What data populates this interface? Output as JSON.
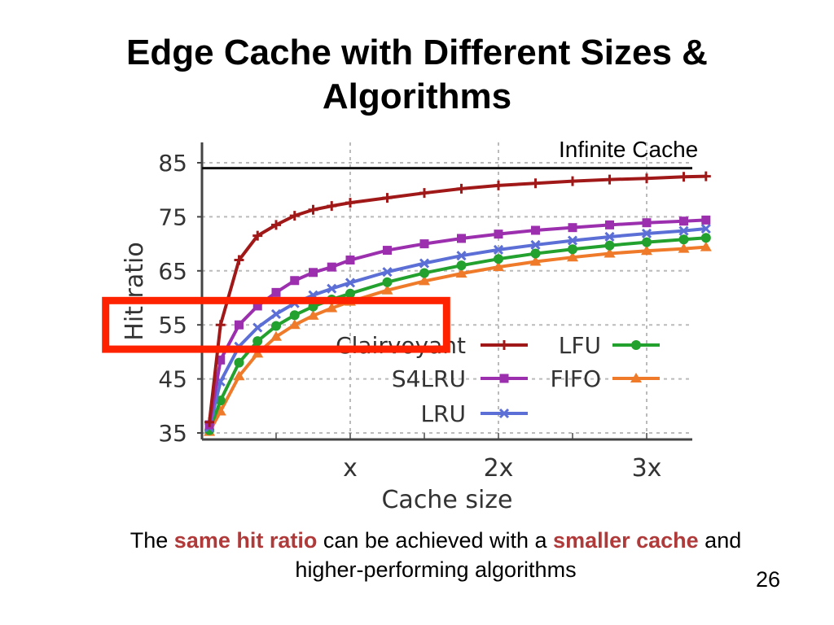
{
  "slide": {
    "title_line1": "Edge Cache with Different Sizes &",
    "title_line2": "Algorithms",
    "infinite_cache_label": "Infinite Cache",
    "caption": {
      "part1": "The ",
      "highlight1": "same hit ratio",
      "part2": " can be achieved with a ",
      "highlight2": "smaller cache",
      "part3": " and",
      "line2": "higher-performing algorithms"
    },
    "slide_number": "26",
    "highlight_color": "#b03a3a"
  },
  "chart_data": {
    "type": "line",
    "xlabel": "Cache size",
    "ylabel": "Hit ratio",
    "xlim": [
      0,
      3.4
    ],
    "ylim": [
      35,
      85
    ],
    "x_ticks": [
      {
        "v": 1,
        "label": "x"
      },
      {
        "v": 2,
        "label": "2x"
      },
      {
        "v": 3,
        "label": "3x"
      }
    ],
    "y_ticks": [
      35,
      45,
      55,
      65,
      75,
      85
    ],
    "grid": true,
    "legend_position": "lower-center",
    "reference_line": {
      "label": "Infinite Cache",
      "y": 84
    },
    "highlight_box": {
      "x_range": [
        -0.65,
        1.65
      ],
      "y_range": [
        50.5,
        59.5
      ],
      "color": "#ff2200"
    },
    "series": [
      {
        "name": "Clairvoyant",
        "color": "#a01818",
        "marker": "plus",
        "x": [
          0.05,
          0.125,
          0.25,
          0.375,
          0.5,
          0.625,
          0.75,
          0.875,
          1.0,
          1.25,
          1.5,
          1.75,
          2.0,
          2.25,
          2.5,
          2.75,
          3.0,
          3.25,
          3.4
        ],
        "y": [
          37,
          55,
          67,
          71.5,
          73.5,
          75.2,
          76.3,
          77,
          77.6,
          78.5,
          79.4,
          80.2,
          80.8,
          81.2,
          81.6,
          81.9,
          82.1,
          82.4,
          82.5
        ]
      },
      {
        "name": "S4LRU",
        "color": "#9b2fae",
        "marker": "square",
        "x": [
          0.05,
          0.125,
          0.25,
          0.375,
          0.5,
          0.625,
          0.75,
          0.875,
          1.0,
          1.25,
          1.5,
          1.75,
          2.0,
          2.25,
          2.5,
          2.75,
          3.0,
          3.25,
          3.4
        ],
        "y": [
          36.5,
          48.5,
          55,
          58.5,
          61,
          63.2,
          64.7,
          65.7,
          67,
          68.8,
          70,
          71,
          71.8,
          72.5,
          73,
          73.5,
          73.9,
          74.2,
          74.4
        ]
      },
      {
        "name": "LRU",
        "color": "#5b6fd6",
        "marker": "x",
        "x": [
          0.05,
          0.125,
          0.25,
          0.375,
          0.5,
          0.625,
          0.75,
          0.875,
          1.0,
          1.25,
          1.5,
          1.75,
          2.0,
          2.25,
          2.5,
          2.75,
          3.0,
          3.25,
          3.4
        ],
        "y": [
          36,
          44.5,
          51,
          54.5,
          57,
          59,
          60.5,
          61.7,
          62.8,
          64.8,
          66.4,
          67.8,
          68.9,
          69.8,
          70.6,
          71.3,
          71.9,
          72.4,
          72.8
        ]
      },
      {
        "name": "LFU",
        "color": "#22a12e",
        "marker": "circle",
        "x": [
          0.05,
          0.125,
          0.25,
          0.375,
          0.5,
          0.625,
          0.75,
          0.875,
          1.0,
          1.25,
          1.5,
          1.75,
          2.0,
          2.25,
          2.5,
          2.75,
          3.0,
          3.25,
          3.4
        ],
        "y": [
          35.5,
          41,
          48,
          52,
          54.8,
          56.8,
          58.4,
          59.7,
          60.8,
          62.9,
          64.6,
          66,
          67.2,
          68.2,
          69,
          69.7,
          70.3,
          70.8,
          71.1
        ]
      },
      {
        "name": "FIFO",
        "color": "#ee7a2a",
        "marker": "triangle",
        "x": [
          0.05,
          0.125,
          0.25,
          0.375,
          0.5,
          0.625,
          0.75,
          0.875,
          1.0,
          1.25,
          1.5,
          1.75,
          2.0,
          2.25,
          2.5,
          2.75,
          3.0,
          3.25,
          3.4
        ],
        "y": [
          35.2,
          39,
          45.5,
          49.7,
          52.8,
          55,
          56.7,
          58.1,
          59.3,
          61.4,
          63.1,
          64.5,
          65.7,
          66.7,
          67.5,
          68.2,
          68.7,
          69.1,
          69.4
        ]
      }
    ]
  }
}
